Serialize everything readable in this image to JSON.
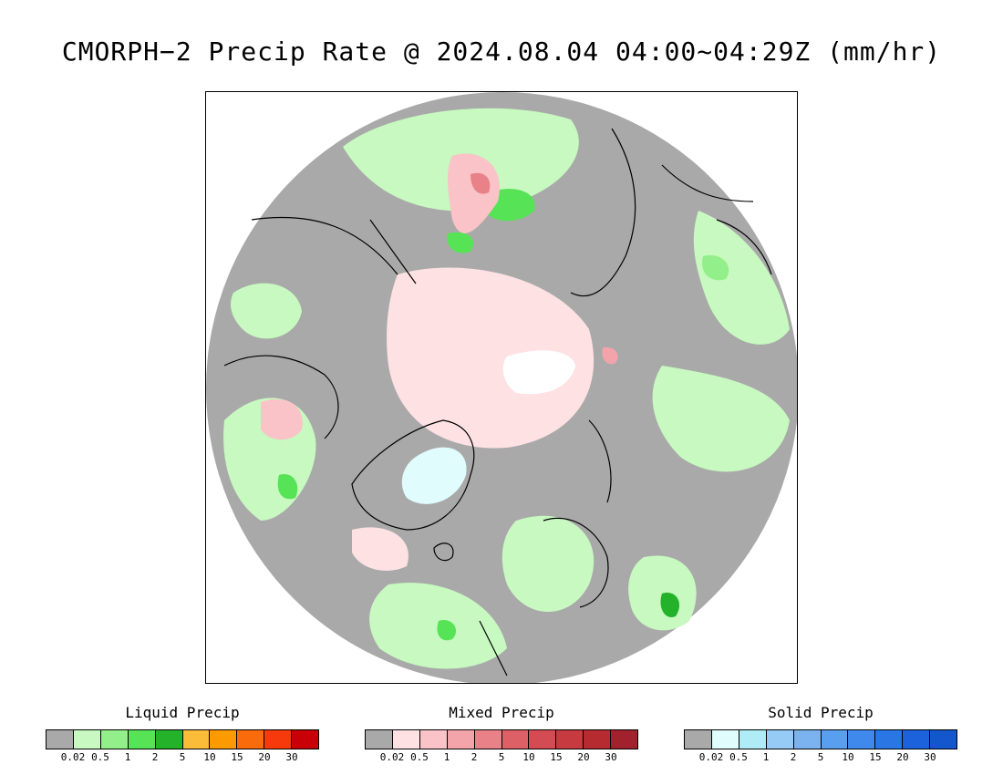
{
  "title": "CMORPH−2 Precip Rate @ 2024.08.04 04:00~04:29Z (mm/hr)",
  "legends": [
    {
      "title": "Liquid Precip",
      "colors": [
        "#a9a9a9",
        "#c7f9c0",
        "#93ef89",
        "#57e356",
        "#24b22a",
        "#fbbc39",
        "#fb9b01",
        "#fa6b0c",
        "#f73a0c",
        "#c90007"
      ],
      "ticks": [
        "0.02",
        "0.5",
        "1",
        "2",
        "5",
        "10",
        "15",
        "20",
        "30"
      ]
    },
    {
      "title": "Mixed Precip",
      "colors": [
        "#a9a9a9",
        "#fde1e3",
        "#f9c3c7",
        "#f2a4aa",
        "#e98288",
        "#dd6067",
        "#d44c53",
        "#c63a40",
        "#b52b2f",
        "#a1212c"
      ],
      "ticks": [
        "0.02",
        "0.5",
        "1",
        "2",
        "5",
        "10",
        "15",
        "20",
        "30"
      ]
    },
    {
      "title": "Solid Precip",
      "colors": [
        "#a9a9a9",
        "#e0fcfc",
        "#b0ecf6",
        "#95cbf5",
        "#7bb3f0",
        "#599ff0",
        "#4089ec",
        "#2a76e4",
        "#1d62dd",
        "#1356cd"
      ],
      "ticks": [
        "0.02",
        "0.5",
        "1",
        "2",
        "5",
        "10",
        "15",
        "20",
        "30"
      ]
    }
  ]
}
